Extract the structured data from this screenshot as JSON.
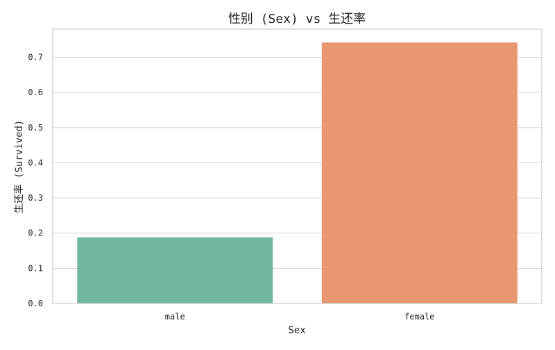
{
  "chart_data": {
    "type": "bar",
    "title": "性别 (Sex) vs 生还率",
    "xlabel": "Sex",
    "ylabel": "生还率 (Survived)",
    "categories": [
      "male",
      "female"
    ],
    "values": [
      0.188,
      0.742
    ],
    "colors": [
      "#73b6a0",
      "#e99773"
    ],
    "ylim": [
      0,
      0.78
    ],
    "yticks": [
      0.0,
      0.1,
      0.2,
      0.3,
      0.4,
      0.5,
      0.6,
      0.7
    ],
    "ytick_labels": [
      "0.0",
      "0.1",
      "0.2",
      "0.3",
      "0.4",
      "0.5",
      "0.6",
      "0.7"
    ],
    "grid": true,
    "grid_axis": "y",
    "legend": "none"
  }
}
